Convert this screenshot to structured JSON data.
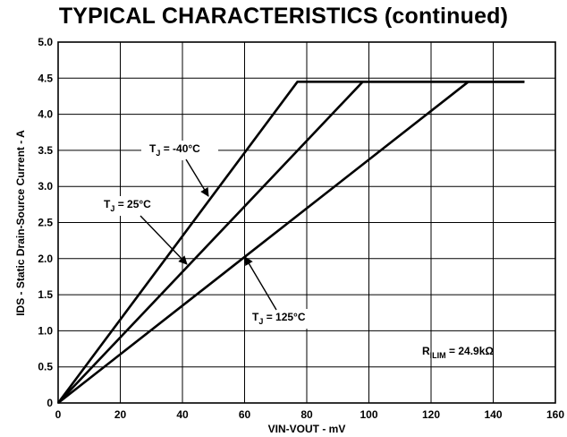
{
  "header": {
    "title": "TYPICAL CHARACTERISTICS (continued)"
  },
  "chart_data": {
    "type": "line",
    "xlabel": "VIN-VOUT - mV",
    "ylabel": "IDS - Static Drain-Source Current - A",
    "xlim": [
      0,
      160
    ],
    "ylim": [
      0,
      5
    ],
    "xticks": [
      0,
      20,
      40,
      60,
      80,
      100,
      120,
      140,
      160
    ],
    "yticks": [
      0,
      0.5,
      1.0,
      1.5,
      2.0,
      2.5,
      3.0,
      3.5,
      4.0,
      4.5,
      5.0
    ],
    "ytick_labels": [
      "0",
      "0.5",
      "1.0",
      "1.5",
      "2.0",
      "2.5",
      "3.0",
      "3.5",
      "4.0",
      "4.5",
      "5.0"
    ],
    "grid": true,
    "series": [
      {
        "name": "T_J = -40°C",
        "x": [
          0,
          77,
          150
        ],
        "y": [
          0,
          4.45,
          4.45
        ]
      },
      {
        "name": "T_J = 25°C",
        "x": [
          0,
          98,
          150
        ],
        "y": [
          0,
          4.45,
          4.45
        ]
      },
      {
        "name": "T_J = 125°C",
        "x": [
          0,
          132,
          150
        ],
        "y": [
          0,
          4.45,
          4.45
        ]
      }
    ],
    "annotations": [
      {
        "main": "T",
        "sub": "J",
        "rest": " = -40°C"
      },
      {
        "main": "T",
        "sub": "J",
        "rest": " = 25°C"
      },
      {
        "main": "T",
        "sub": "J",
        "rest": " = 125°C"
      },
      {
        "main": "R",
        "sub": "ILIM",
        "rest": " = 24.9kΩ"
      }
    ]
  }
}
